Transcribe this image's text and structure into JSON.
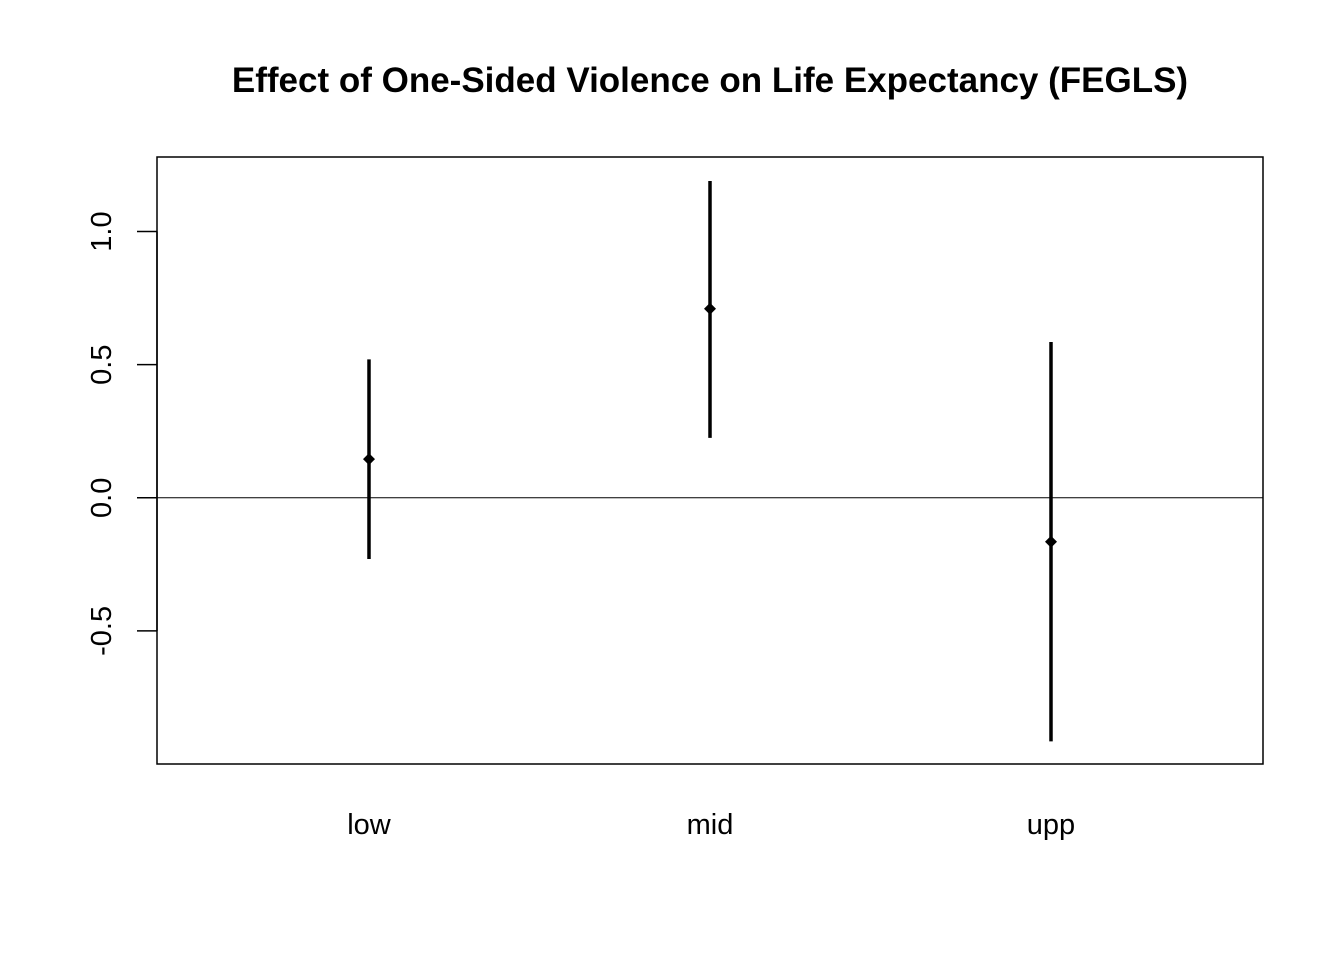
{
  "chart_data": {
    "type": "scatter",
    "title": "Effect of One-Sided Violence on Life Expectancy (FEGLS)",
    "xlabel": "",
    "ylabel": "",
    "categories": [
      "low",
      "mid",
      "upp"
    ],
    "series": [
      {
        "estimates": [
          0.145,
          0.71,
          -0.165
        ],
        "lower": [
          -0.23,
          0.225,
          -0.915
        ],
        "upper": [
          0.52,
          1.19,
          0.585
        ]
      }
    ],
    "ylim": [
      -1.0,
      1.28
    ],
    "yticks": [
      -0.5,
      0.0,
      0.5,
      1.0
    ],
    "ytick_labels": [
      "-0.5",
      "0.0",
      "0.5",
      "1.0"
    ],
    "reference_line": 0.0,
    "grid": false,
    "legend": "none",
    "colors": {
      "marks": "#000000",
      "background": "#ffffff"
    }
  }
}
